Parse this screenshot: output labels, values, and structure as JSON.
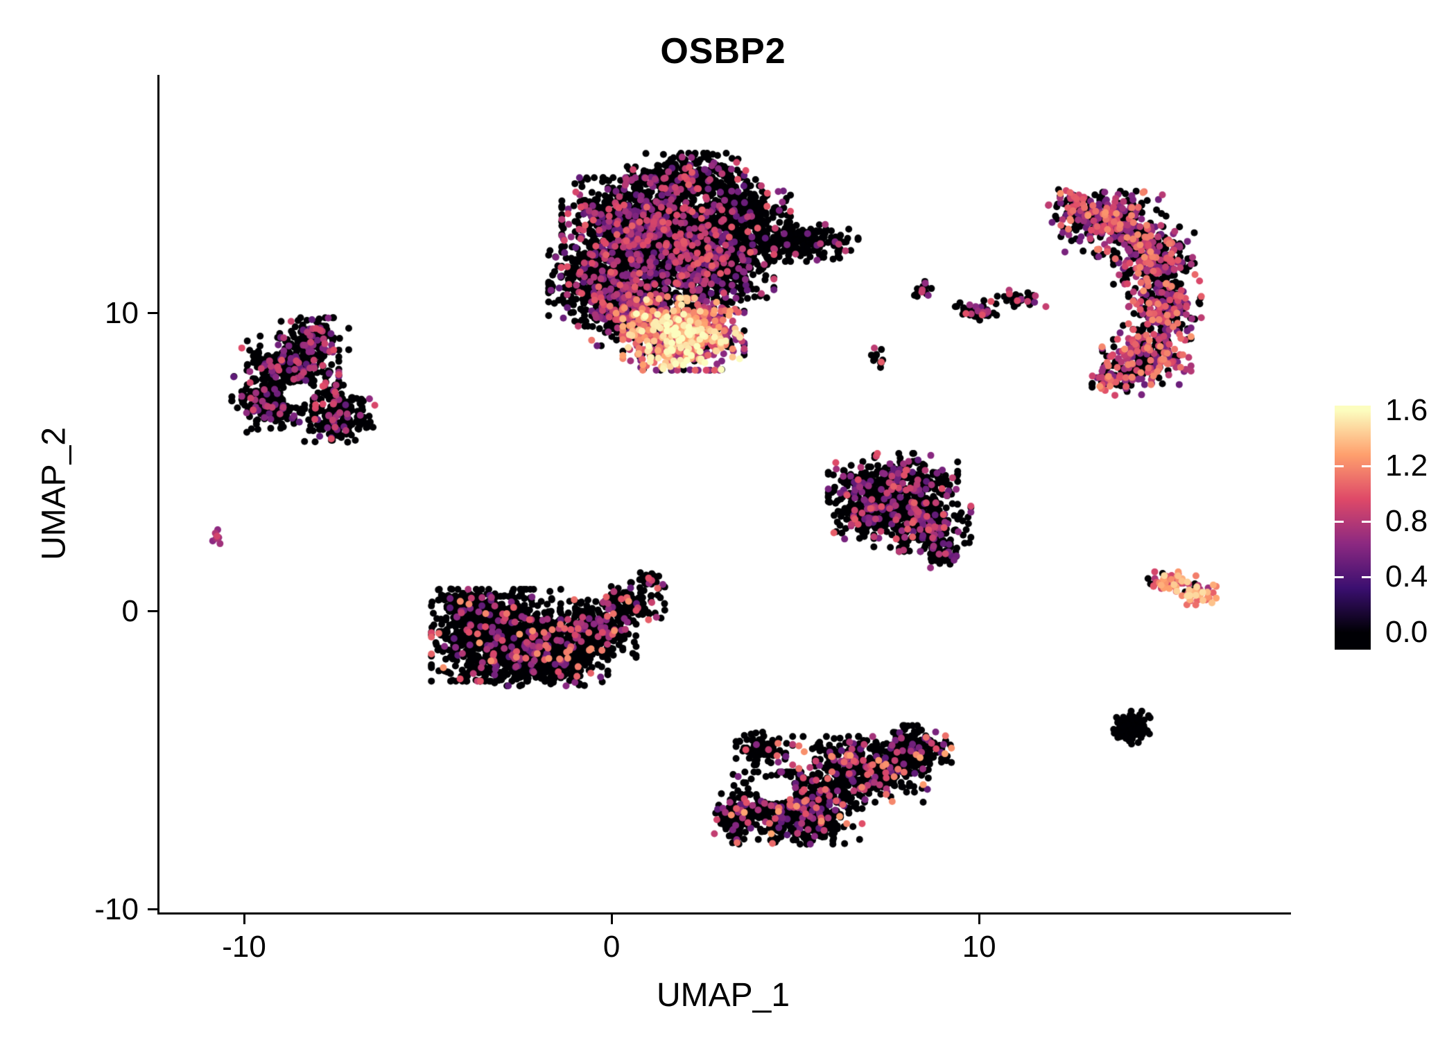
{
  "title": "OSBP2",
  "chart_data": {
    "type": "scatter",
    "title": "OSBP2",
    "xlabel": "UMAP_1",
    "ylabel": "UMAP_2",
    "xlim": [
      -12.36,
      18.43
    ],
    "ylim": [
      -10.1,
      18.0
    ],
    "grid": false,
    "point_radius_px": 5,
    "x_ticks": [
      {
        "value": -10,
        "label": "-10"
      },
      {
        "value": 0,
        "label": "0"
      },
      {
        "value": 10,
        "label": "10"
      }
    ],
    "y_ticks": [
      {
        "value": 10,
        "label": "10"
      },
      {
        "value": 0,
        "label": "0"
      },
      {
        "value": -10,
        "label": "-10"
      }
    ],
    "colorbar": {
      "min": 0.0,
      "max": 1.6,
      "colormap": "magma",
      "position": "right",
      "stops": [
        {
          "t": 0.0,
          "color": "#000004"
        },
        {
          "t": 0.2,
          "color": "#3b0f70"
        },
        {
          "t": 0.4,
          "color": "#8c2981"
        },
        {
          "t": 0.6,
          "color": "#de4968"
        },
        {
          "t": 0.8,
          "color": "#fe9f6d"
        },
        {
          "t": 1.0,
          "color": "#fcfdbf"
        }
      ],
      "labels": [
        {
          "text": "1.6",
          "f": 0.02,
          "tick": false
        },
        {
          "text": "1.2",
          "f": 0.2475,
          "tick": true
        },
        {
          "text": "0.8",
          "f": 0.475,
          "tick": true
        },
        {
          "text": "0.4",
          "f": 0.7025,
          "tick": true
        },
        {
          "text": "0.0",
          "f": 0.93,
          "tick": false
        }
      ]
    },
    "n_points_approx": 10400,
    "clusters": [
      {
        "name": "top-large",
        "expr": {
          "p0": 0.8,
          "min": 0.45,
          "max": 1.05,
          "skew": 1.4
        },
        "parts": [
          {
            "cx": 0.9,
            "cy": 12.9,
            "rx": 2.1,
            "ry": 1.5,
            "n": 1300
          },
          {
            "cx": 0.1,
            "cy": 11.0,
            "rx": 1.7,
            "ry": 1.3,
            "n": 750
          },
          {
            "cx": 2.6,
            "cy": 11.6,
            "rx": 1.6,
            "ry": 1.3,
            "n": 650
          },
          {
            "cx": 2.1,
            "cy": 14.6,
            "rx": 1.6,
            "ry": 0.7,
            "n": 280
          },
          {
            "cx": 3.6,
            "cy": 13.4,
            "rx": 1.1,
            "ry": 0.8,
            "n": 260
          },
          {
            "cx": 5.0,
            "cy": 12.4,
            "rx": 1.5,
            "ry": 0.6,
            "n": 240,
            "expr": {
              "p0": 0.92,
              "min": 0.45,
              "max": 0.9,
              "skew": 1.4
            }
          },
          {
            "cx": 1.9,
            "cy": 9.3,
            "rx": 1.5,
            "ry": 1.1,
            "n": 800,
            "expr": {
              "p0": 0.3,
              "min": 0.5,
              "max": 1.65,
              "skew": 1.15
            }
          },
          {
            "cx": 0.5,
            "cy": 9.9,
            "rx": 1.0,
            "ry": 0.9,
            "n": 260,
            "expr": {
              "p0": 0.55,
              "min": 0.5,
              "max": 1.3,
              "skew": 1.3
            }
          }
        ]
      },
      {
        "name": "left",
        "expr": {
          "p0": 0.8,
          "min": 0.45,
          "max": 1.0,
          "skew": 1.4
        },
        "hole": {
          "cx": -8.6,
          "cy": 7.3,
          "rx": 0.45,
          "ry": 0.4
        },
        "parts": [
          {
            "cx": -8.8,
            "cy": 8.2,
            "rx": 1.2,
            "ry": 1.0,
            "n": 330
          },
          {
            "cx": -9.4,
            "cy": 7.0,
            "rx": 0.9,
            "ry": 0.9,
            "n": 180
          },
          {
            "cx": -7.6,
            "cy": 6.6,
            "rx": 1.0,
            "ry": 0.9,
            "n": 200
          },
          {
            "cx": -8.2,
            "cy": 9.3,
            "rx": 0.9,
            "ry": 0.5,
            "n": 90
          }
        ]
      },
      {
        "name": "tiny-far-left",
        "expr": {
          "p0": 0.4,
          "min": 0.6,
          "max": 0.95,
          "skew": 1.0
        },
        "parts": [
          {
            "cx": -10.8,
            "cy": 2.5,
            "rx": 0.18,
            "ry": 0.22,
            "n": 9
          }
        ]
      },
      {
        "name": "bottom-left",
        "expr": {
          "p0": 0.87,
          "min": 0.45,
          "max": 1.25,
          "skew": 1.5
        },
        "parts": [
          {
            "cx": -3.2,
            "cy": -0.8,
            "rx": 1.6,
            "ry": 1.4,
            "n": 900
          },
          {
            "cx": -1.7,
            "cy": -1.4,
            "rx": 1.4,
            "ry": 1.0,
            "n": 500
          },
          {
            "cx": -0.6,
            "cy": -0.6,
            "rx": 1.1,
            "ry": 0.9,
            "n": 300
          },
          {
            "cx": 0.4,
            "cy": 0.3,
            "rx": 0.9,
            "ry": 0.6,
            "n": 120
          },
          {
            "cx": -4.0,
            "cy": 0.2,
            "rx": 0.7,
            "ry": 0.5,
            "n": 90
          },
          {
            "cx": 0.9,
            "cy": 1.0,
            "rx": 0.4,
            "ry": 0.35,
            "n": 30
          }
        ]
      },
      {
        "name": "middle-right",
        "expr": {
          "p0": 0.78,
          "min": 0.45,
          "max": 1.05,
          "skew": 1.4
        },
        "parts": [
          {
            "cx": 7.6,
            "cy": 4.2,
            "rx": 1.6,
            "ry": 1.0,
            "n": 450
          },
          {
            "cx": 8.4,
            "cy": 3.0,
            "rx": 1.2,
            "ry": 0.9,
            "n": 300
          },
          {
            "cx": 6.8,
            "cy": 3.2,
            "rx": 0.8,
            "ry": 0.7,
            "n": 150
          },
          {
            "cx": 9.0,
            "cy": 1.9,
            "rx": 0.5,
            "ry": 0.4,
            "n": 50
          }
        ]
      },
      {
        "name": "bottom-center",
        "expr": {
          "p0": 0.85,
          "min": 0.45,
          "max": 1.3,
          "skew": 1.5
        },
        "hole": {
          "cx": 4.4,
          "cy": -6.0,
          "rx": 0.55,
          "ry": 0.45
        },
        "parts": [
          {
            "cx": 5.0,
            "cy": -6.6,
            "rx": 1.6,
            "ry": 1.1,
            "n": 600
          },
          {
            "cx": 6.8,
            "cy": -5.3,
            "rx": 1.6,
            "ry": 1.0,
            "n": 450
          },
          {
            "cx": 8.2,
            "cy": -4.6,
            "rx": 0.9,
            "ry": 0.7,
            "n": 180
          },
          {
            "cx": 4.1,
            "cy": -4.6,
            "rx": 0.7,
            "ry": 0.5,
            "n": 100
          },
          {
            "cx": 3.4,
            "cy": -6.9,
            "rx": 0.6,
            "ry": 0.8,
            "n": 110
          }
        ]
      },
      {
        "name": "right-large",
        "expr": {
          "p0": 0.52,
          "min": 0.5,
          "max": 1.25,
          "skew": 1.3
        },
        "parts": [
          {
            "cx": 13.6,
            "cy": 13.0,
            "rx": 1.3,
            "ry": 1.0,
            "n": 300
          },
          {
            "cx": 14.7,
            "cy": 11.8,
            "rx": 1.0,
            "ry": 1.0,
            "n": 250
          },
          {
            "cx": 15.0,
            "cy": 10.2,
            "rx": 0.9,
            "ry": 1.0,
            "n": 220
          },
          {
            "cx": 14.5,
            "cy": 8.6,
            "rx": 1.1,
            "ry": 0.9,
            "n": 220
          },
          {
            "cx": 12.6,
            "cy": 13.6,
            "rx": 0.7,
            "ry": 0.5,
            "n": 90
          },
          {
            "cx": 13.6,
            "cy": 7.8,
            "rx": 0.7,
            "ry": 0.5,
            "n": 80
          }
        ]
      },
      {
        "name": "small-mid-a",
        "expr": {
          "p0": 0.8,
          "min": 0.5,
          "max": 0.9,
          "skew": 1.0
        },
        "parts": [
          {
            "cx": 8.4,
            "cy": 10.8,
            "rx": 0.35,
            "ry": 0.3,
            "n": 16
          }
        ]
      },
      {
        "name": "small-mid-b",
        "expr": {
          "p0": 0.7,
          "min": 0.5,
          "max": 1.0,
          "skew": 1.0
        },
        "parts": [
          {
            "cx": 9.9,
            "cy": 10.1,
            "rx": 0.55,
            "ry": 0.3,
            "n": 40
          },
          {
            "cx": 11.1,
            "cy": 10.5,
            "rx": 0.6,
            "ry": 0.25,
            "n": 35
          }
        ]
      },
      {
        "name": "small-mid-c",
        "expr": {
          "p0": 0.55,
          "min": 0.6,
          "max": 1.35,
          "skew": 1.2
        },
        "parts": [
          {
            "cx": 7.2,
            "cy": 8.5,
            "rx": 0.3,
            "ry": 0.35,
            "n": 12
          }
        ]
      },
      {
        "name": "small-right-hot",
        "expr": {
          "p0": 0.12,
          "min": 0.7,
          "max": 1.5,
          "skew": 1.1
        },
        "parts": [
          {
            "cx": 15.2,
            "cy": 1.0,
            "rx": 0.6,
            "ry": 0.3,
            "n": 55
          },
          {
            "cx": 15.9,
            "cy": 0.6,
            "rx": 0.45,
            "ry": 0.35,
            "n": 45
          }
        ]
      },
      {
        "name": "small-right-dark",
        "expr": {
          "p0": 0.99,
          "min": 0.5,
          "max": 0.7,
          "skew": 1.0
        },
        "parts": [
          {
            "cx": 14.1,
            "cy": -3.9,
            "rx": 0.45,
            "ry": 0.5,
            "n": 110
          }
        ]
      }
    ]
  }
}
